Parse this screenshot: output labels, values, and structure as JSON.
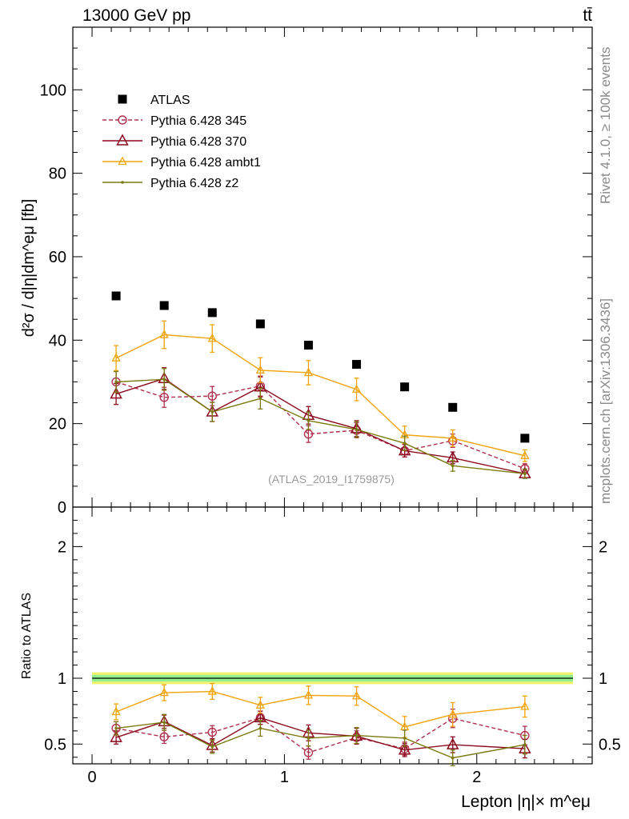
{
  "header": {
    "left": "13000 GeV pp",
    "right": "tt̄"
  },
  "side_labels": {
    "rivet": "Rivet 4.1.0, ≥ 100k events",
    "site": "mcplots.cern.ch [arXiv:1306.3436]"
  },
  "watermark": "(ATLAS_2019_I1759875)",
  "colors": {
    "atlas": "#000000",
    "p345": "#b03050",
    "p370": "#8b0a1e",
    "ambt1": "#f0a30a",
    "z2": "#7a7a10",
    "band_outer": "#f0f070",
    "band_inner": "#90f090"
  },
  "chart_data": [
    {
      "type": "line",
      "panel": "main",
      "ylabel": "d²σ / d|η|dm^eμ [fb]",
      "ylim": [
        0,
        115
      ],
      "yticks": [
        {
          "v": 0,
          "label": "0"
        },
        {
          "v": 20,
          "label": "20"
        },
        {
          "v": 40,
          "label": "40"
        },
        {
          "v": 60,
          "label": "60"
        },
        {
          "v": 80,
          "label": "80"
        },
        {
          "v": 100,
          "label": "100"
        }
      ],
      "xlim": [
        -0.1,
        2.6
      ],
      "x": [
        0.125,
        0.375,
        0.625,
        0.875,
        1.125,
        1.375,
        1.625,
        1.875,
        2.25
      ],
      "series": [
        {
          "name": "ATLAS",
          "key": "atlas",
          "style": "data",
          "values": [
            50.6,
            48.3,
            46.6,
            43.9,
            38.8,
            34.2,
            28.8,
            23.9,
            16.5
          ]
        },
        {
          "name": "Pythia 6.428 345",
          "key": "p345",
          "style": "circle-dashed",
          "values": [
            30.0,
            26.3,
            26.6,
            29.0,
            17.5,
            18.4,
            13.5,
            15.9,
            9.2
          ],
          "errors": [
            2.5,
            2.4,
            2.3,
            2.4,
            2.0,
            1.8,
            1.5,
            1.6,
            1.2
          ]
        },
        {
          "name": "Pythia 6.428 370",
          "key": "p370",
          "style": "triangle",
          "values": [
            27.1,
            30.8,
            22.8,
            28.8,
            22.0,
            18.8,
            13.5,
            11.8,
            8.0
          ],
          "errors": [
            2.5,
            2.6,
            2.3,
            2.4,
            2.1,
            1.9,
            1.5,
            1.4,
            1.1
          ]
        },
        {
          "name": "Pythia 6.428 ambt1",
          "key": "ambt1",
          "style": "triangle-small",
          "values": [
            35.7,
            41.3,
            40.4,
            32.8,
            32.2,
            28.2,
            17.3,
            16.5,
            12.3
          ],
          "errors": [
            3.0,
            3.3,
            3.3,
            3.0,
            2.9,
            2.7,
            2.1,
            2.0,
            1.4
          ]
        },
        {
          "name": "Pythia 6.428 z2",
          "key": "z2",
          "style": "dot",
          "values": [
            30.0,
            30.6,
            22.8,
            26.0,
            20.7,
            18.6,
            15.3,
            9.9,
            8.0
          ],
          "errors": [
            2.5,
            2.6,
            2.3,
            2.5,
            2.1,
            1.9,
            1.7,
            1.3,
            1.1
          ]
        }
      ]
    },
    {
      "type": "line",
      "panel": "ratio",
      "ylabel": "Ratio to ATLAS",
      "ylim": [
        0.35,
        2.3
      ],
      "yticks": [
        {
          "v": 0.5,
          "label": "0.5"
        },
        {
          "v": 1,
          "label": "1"
        },
        {
          "v": 2,
          "label": "2"
        }
      ],
      "xlim": [
        -0.1,
        2.6
      ],
      "xticks": [
        {
          "v": 0,
          "label": "0"
        },
        {
          "v": 1,
          "label": "1"
        },
        {
          "v": 2,
          "label": "2"
        }
      ],
      "xlabel": "Lepton |η|× m^eμ",
      "x": [
        0.125,
        0.375,
        0.625,
        0.875,
        1.125,
        1.375,
        1.625,
        1.875,
        2.25
      ],
      "band": {
        "xrange": [
          0,
          2.5
        ],
        "outer": 0.045,
        "inner": 0.025
      },
      "series": [
        {
          "name": "Pythia 6.428 345",
          "key": "p345",
          "style": "circle-dashed",
          "values": [
            0.62,
            0.555,
            0.59,
            0.7,
            0.435,
            0.55,
            0.465,
            0.695,
            0.565
          ],
          "errors": [
            0.05,
            0.05,
            0.05,
            0.05,
            0.05,
            0.05,
            0.05,
            0.07,
            0.07
          ]
        },
        {
          "name": "Pythia 6.428 370",
          "key": "p370",
          "style": "triangle",
          "values": [
            0.55,
            0.67,
            0.49,
            0.7,
            0.585,
            0.56,
            0.455,
            0.495,
            0.465
          ],
          "errors": [
            0.05,
            0.05,
            0.05,
            0.05,
            0.06,
            0.06,
            0.05,
            0.06,
            0.07
          ]
        },
        {
          "name": "Pythia 6.428 ambt1",
          "key": "ambt1",
          "style": "triangle-small",
          "values": [
            0.745,
            0.89,
            0.9,
            0.795,
            0.87,
            0.865,
            0.63,
            0.725,
            0.785
          ],
          "errors": [
            0.06,
            0.06,
            0.06,
            0.06,
            0.07,
            0.07,
            0.08,
            0.09,
            0.08
          ]
        },
        {
          "name": "Pythia 6.428 z2",
          "key": "z2",
          "style": "dot",
          "values": [
            0.62,
            0.665,
            0.48,
            0.62,
            0.545,
            0.565,
            0.545,
            0.395,
            0.495
          ],
          "errors": [
            0.05,
            0.06,
            0.05,
            0.06,
            0.06,
            0.06,
            0.06,
            0.06,
            0.07
          ]
        }
      ]
    }
  ]
}
